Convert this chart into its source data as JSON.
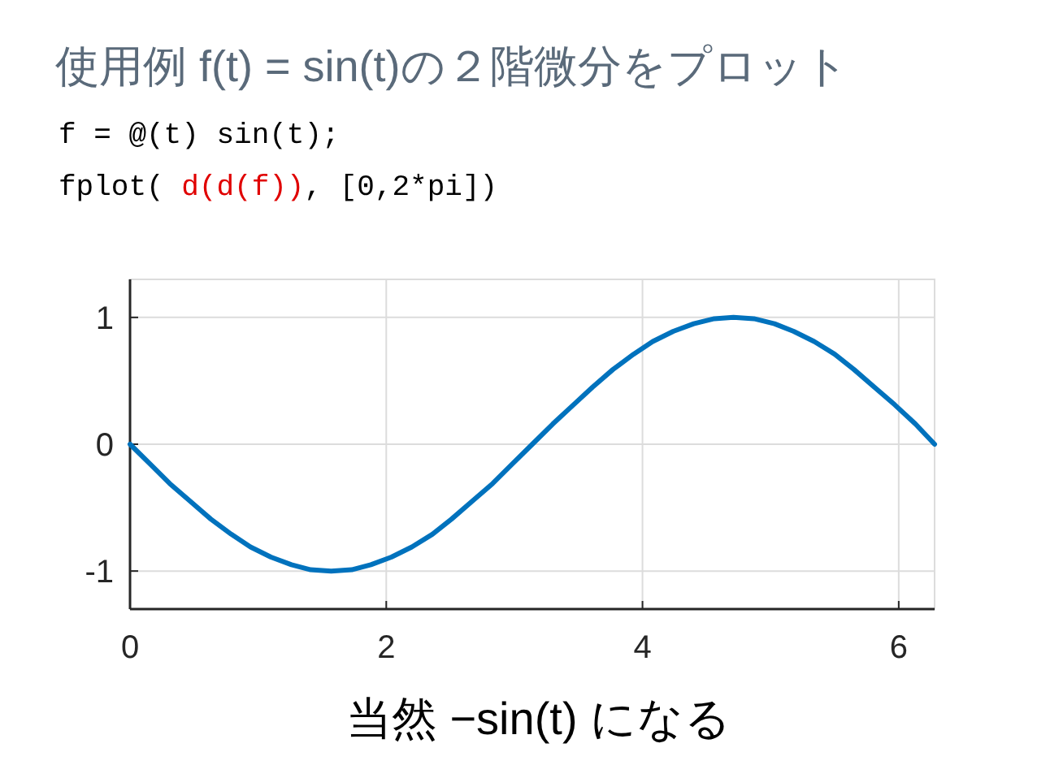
{
  "chart_data": {
    "type": "line",
    "title": "使用例 f(t) = sin(t)の２階微分をプロット",
    "annotations": [
      "f = @(t) sin(t);",
      "fplot( ",
      "d(d(f))",
      ", [0,2*pi])"
    ],
    "xlabel": "当然 −sin(t) になる",
    "x": [
      0,
      0.16,
      0.31,
      0.47,
      0.63,
      0.79,
      0.94,
      1.1,
      1.26,
      1.41,
      1.57,
      1.73,
      1.88,
      2.04,
      2.2,
      2.36,
      2.51,
      2.67,
      2.83,
      2.98,
      3.14,
      3.3,
      3.46,
      3.61,
      3.77,
      3.93,
      4.08,
      4.24,
      4.4,
      4.56,
      4.71,
      4.87,
      5.03,
      5.18,
      5.34,
      5.5,
      5.65,
      5.81,
      5.97,
      6.13,
      6.28
    ],
    "series": [
      {
        "color": "#0072bd",
        "values": [
          0,
          -0.16,
          -0.31,
          -0.45,
          -0.59,
          -0.71,
          -0.81,
          -0.89,
          -0.95,
          -0.99,
          -1,
          -0.99,
          -0.95,
          -0.89,
          -0.81,
          -0.71,
          -0.59,
          -0.45,
          -0.31,
          -0.16,
          0,
          0.16,
          0.31,
          0.45,
          0.59,
          0.71,
          0.81,
          0.89,
          0.95,
          0.99,
          1,
          0.99,
          0.95,
          0.89,
          0.81,
          0.71,
          0.59,
          0.45,
          0.31,
          0.16,
          0
        ]
      }
    ],
    "xlim": [
      0,
      6.28
    ],
    "ylim": [
      -1.3,
      1.3
    ],
    "xticks": [
      0,
      2,
      4,
      6
    ],
    "yticks": [
      -1,
      0,
      1
    ],
    "grid": true
  }
}
